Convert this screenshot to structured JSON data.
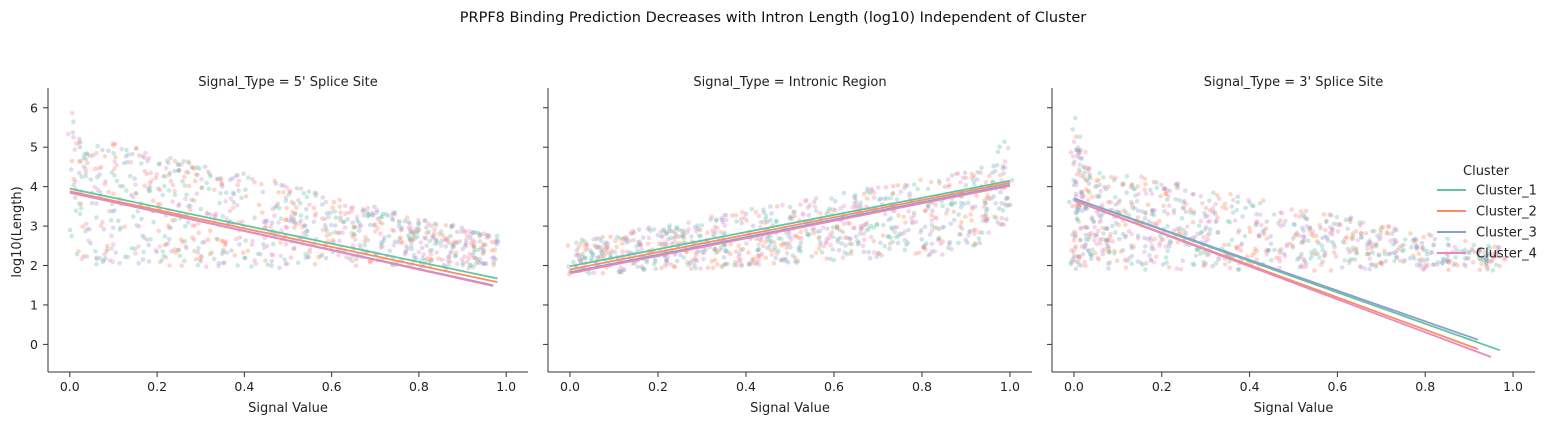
{
  "chart_data": {
    "type": "scatter",
    "title": "PRPF8 Binding Prediction Decreases with Intron Length (log10) Independent of Cluster",
    "xlabel": "Signal Value",
    "ylabel": "log10(Length)",
    "xlim": [
      -0.05,
      1.05
    ],
    "ylim": [
      -0.7,
      6.4
    ],
    "xticks": [
      0.0,
      0.2,
      0.4,
      0.6,
      0.8,
      1.0
    ],
    "xtick_labels": [
      "0.0",
      "0.2",
      "0.4",
      "0.6",
      "0.8",
      "1.0"
    ],
    "yticks": [
      0,
      1,
      2,
      3,
      4,
      5,
      6
    ],
    "ytick_labels": [
      "0",
      "1",
      "2",
      "3",
      "4",
      "5",
      "6"
    ],
    "grid": false,
    "legend": {
      "title": "Cluster",
      "placement": "right",
      "entries": [
        "Cluster_1",
        "Cluster_2",
        "Cluster_3",
        "Cluster_4"
      ]
    },
    "series_colors": {
      "Cluster_1": "#66c2a5",
      "Cluster_2": "#fc8d62",
      "Cluster_3": "#8da0cb",
      "Cluster_4": "#e78ac3"
    },
    "facets": [
      {
        "title": "Signal_Type = 5' Splice Site",
        "shape": "decreasing",
        "series": [
          {
            "name": "Cluster_1",
            "fit": [
              [
                0.0,
                3.95
              ],
              [
                0.98,
                1.67
              ]
            ]
          },
          {
            "name": "Cluster_2",
            "fit": [
              [
                0.0,
                3.88
              ],
              [
                0.98,
                1.58
              ]
            ]
          },
          {
            "name": "Cluster_3",
            "fit": [
              [
                0.0,
                3.85
              ],
              [
                0.97,
                1.5
              ]
            ]
          },
          {
            "name": "Cluster_4",
            "fit": [
              [
                0.0,
                3.85
              ],
              [
                0.97,
                1.48
              ]
            ]
          }
        ]
      },
      {
        "title": "Signal_Type = Intronic Region",
        "shape": "increasing",
        "series": [
          {
            "name": "Cluster_1",
            "fit": [
              [
                0.0,
                1.98
              ],
              [
                1.0,
                4.15
              ]
            ]
          },
          {
            "name": "Cluster_2",
            "fit": [
              [
                0.0,
                1.9
              ],
              [
                1.0,
                4.1
              ]
            ]
          },
          {
            "name": "Cluster_3",
            "fit": [
              [
                0.0,
                1.83
              ],
              [
                1.0,
                4.05
              ]
            ]
          },
          {
            "name": "Cluster_4",
            "fit": [
              [
                0.0,
                1.8
              ],
              [
                1.0,
                4.02
              ]
            ]
          }
        ]
      },
      {
        "title": "Signal_Type = 3' Splice Site",
        "shape": "steep-decreasing",
        "series": [
          {
            "name": "Cluster_1",
            "fit": [
              [
                0.0,
                3.7
              ],
              [
                0.97,
                -0.15
              ]
            ]
          },
          {
            "name": "Cluster_2",
            "fit": [
              [
                0.0,
                3.65
              ],
              [
                0.92,
                -0.12
              ]
            ]
          },
          {
            "name": "Cluster_3",
            "fit": [
              [
                0.0,
                3.7
              ],
              [
                0.92,
                0.12
              ]
            ]
          },
          {
            "name": "Cluster_4",
            "fit": [
              [
                0.0,
                3.65
              ],
              [
                0.95,
                -0.32
              ]
            ]
          }
        ]
      }
    ]
  }
}
